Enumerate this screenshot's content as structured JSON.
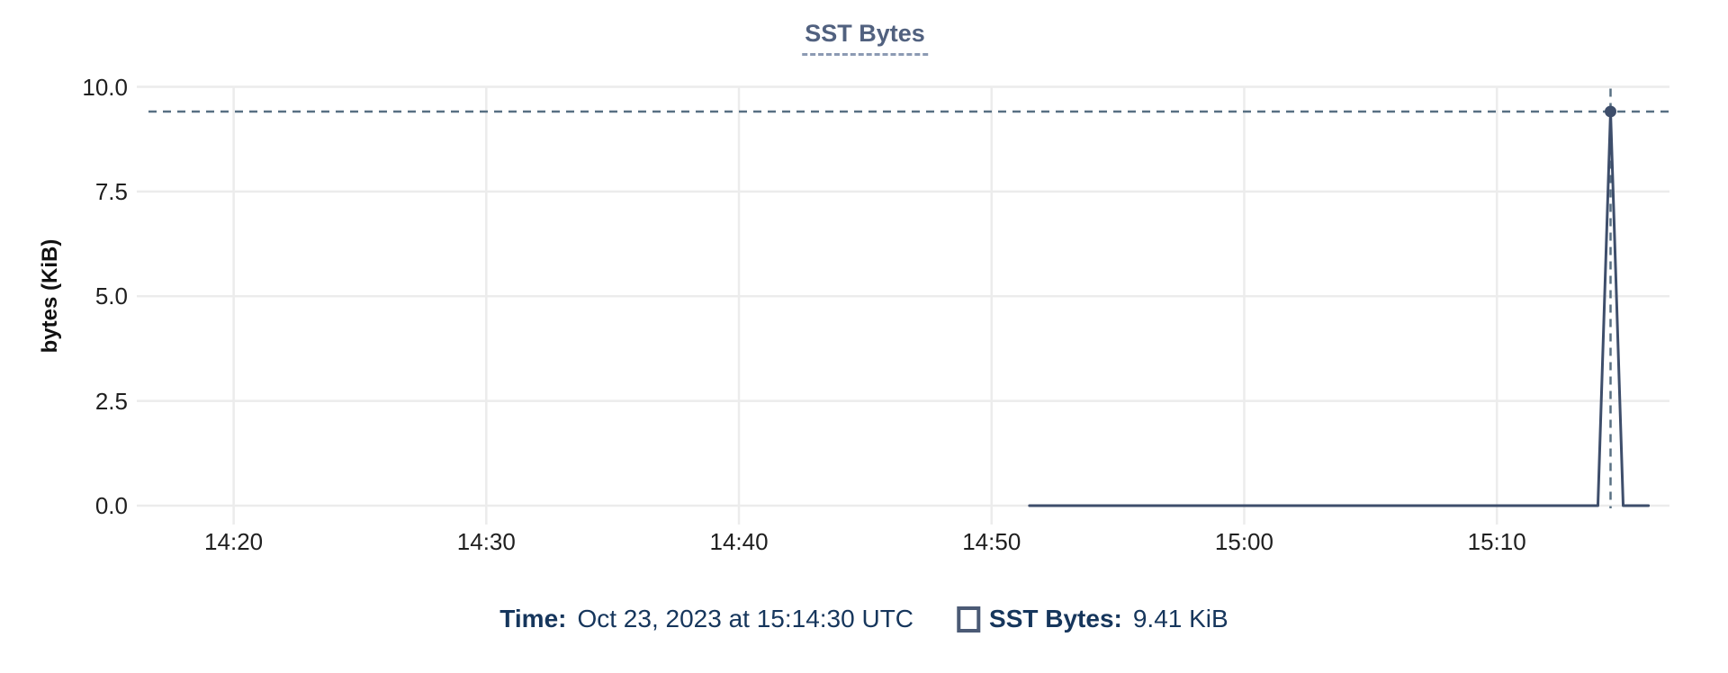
{
  "chart": {
    "title": "SST Bytes",
    "y_axis_label": "bytes (KiB)"
  },
  "chart_data": {
    "type": "line",
    "title": "SST Bytes",
    "xlabel": "",
    "ylabel": "bytes (KiB)",
    "ylim": [
      0,
      10
    ],
    "x_domain": [
      "14:16:10",
      "15:16:50"
    ],
    "grid": true,
    "legend_position": "bottom",
    "y_ticks": [
      {
        "label": "0.0",
        "value": 0
      },
      {
        "label": "2.5",
        "value": 2.5
      },
      {
        "label": "5.0",
        "value": 5
      },
      {
        "label": "7.5",
        "value": 7.5
      },
      {
        "label": "10.0",
        "value": 10
      }
    ],
    "x_ticks": [
      {
        "label": "14:20",
        "time": "14:20:00"
      },
      {
        "label": "14:30",
        "time": "14:30:00"
      },
      {
        "label": "14:40",
        "time": "14:40:00"
      },
      {
        "label": "14:50",
        "time": "14:50:00"
      },
      {
        "label": "15:00",
        "time": "15:00:00"
      },
      {
        "label": "15:10",
        "time": "15:10:00"
      }
    ],
    "series": [
      {
        "name": "SST Bytes",
        "color": "#3e4e6b",
        "points": [
          {
            "time": "14:51:30",
            "value": 0
          },
          {
            "time": "15:14:00",
            "value": 0
          },
          {
            "time": "15:14:30",
            "value": 9.41
          },
          {
            "time": "15:15:00",
            "value": 0
          },
          {
            "time": "15:16:00",
            "value": 0
          }
        ]
      }
    ],
    "hover_point": {
      "series": "SST Bytes",
      "time": "15:14:30",
      "value": 9.41
    }
  },
  "tooltip": {
    "time_label": "Time:",
    "time_value": "Oct 23, 2023 at 15:14:30 UTC",
    "series_label": "SST Bytes:",
    "series_value": "9.41 KiB"
  },
  "colors": {
    "series_line": "#3e4e6b",
    "crosshair": "#587083",
    "gridline": "#ececec",
    "title_text": "#51617f",
    "title_underline": "#8c9ab3",
    "legend_text": "#16365c",
    "legend_swatch_border": "#4b5a75",
    "tick_text": "#1f1f1f"
  }
}
